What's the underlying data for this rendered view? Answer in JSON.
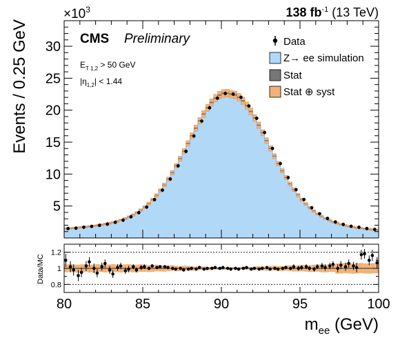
{
  "header": {
    "exponent_base": "×10",
    "exponent_power": "3",
    "lumi_value": "138 fb",
    "lumi_power": "-1",
    "lumi_energy": " (13 TeV)"
  },
  "labels": {
    "experiment": "CMS",
    "status": "Preliminary",
    "cut_et_main": "E",
    "cut_et_sub": "T 1,2",
    "cut_et_rest": " > 50 GeV",
    "cut_eta_main": "|η",
    "cut_eta_sub": "1,2",
    "cut_eta_rest": "| < 1.44"
  },
  "colors": {
    "simulation_fill": "#b2d8f8",
    "simulation_line": "#6fa8dc",
    "stat_band": "#777777",
    "syst_band": "#f0b27a",
    "syst_band_edge": "#c8793a",
    "data": "#000000"
  },
  "chart_data": [
    {
      "type": "bar",
      "panel": "main",
      "xlabel": "m",
      "xlabel_sub": "ee",
      "xlabel_unit": " (GeV)",
      "ylabel": "Events / 0.25 GeV",
      "y_scale_note": "×10^3",
      "xlim": [
        80,
        100
      ],
      "ylim": [
        0,
        34
      ],
      "x_ticks": [
        80,
        85,
        90,
        95,
        100
      ],
      "y_ticks": [
        5,
        10,
        15,
        20,
        25,
        30
      ],
      "legend_position": "top-right",
      "legend": [
        "Data",
        "Z→ ee simulation",
        "Stat",
        "Stat ⊕ syst"
      ],
      "peak": 90.6,
      "peak_value": 22.6,
      "resolution_core": 2.55,
      "background_level": 0.25,
      "ratio_ylim": [
        0.7,
        1.3
      ],
      "ratio_ylabel": "Data/MC",
      "ratio_y_ticks": [
        0.8,
        1,
        1.2
      ],
      "ratio_ref_lines": [
        0.8,
        1.0,
        1.2
      ],
      "ratio_points": [
        [
          80.1,
          1.1,
          0.08
        ],
        [
          80.4,
          1.02,
          0.07
        ],
        [
          80.6,
          0.98,
          0.07
        ],
        [
          80.9,
          0.91,
          0.07
        ],
        [
          81.1,
          0.95,
          0.06
        ],
        [
          81.4,
          1.03,
          0.06
        ],
        [
          81.6,
          1.08,
          0.06
        ],
        [
          81.9,
          1.0,
          0.06
        ],
        [
          82.1,
          0.94,
          0.05
        ],
        [
          82.4,
          1.02,
          0.05
        ],
        [
          82.6,
          1.06,
          0.05
        ],
        [
          82.9,
          0.98,
          0.05
        ],
        [
          83.1,
          0.93,
          0.05
        ],
        [
          83.4,
          1.01,
          0.04
        ],
        [
          83.6,
          1.03,
          0.04
        ],
        [
          83.9,
          0.97,
          0.04
        ],
        [
          84.1,
          0.99,
          0.04
        ],
        [
          84.4,
          1.02,
          0.03
        ],
        [
          84.6,
          0.98,
          0.03
        ],
        [
          84.9,
          1.01,
          0.03
        ],
        [
          85.1,
          1.02,
          0.03
        ],
        [
          85.4,
          1.0,
          0.02
        ],
        [
          85.6,
          1.03,
          0.02
        ],
        [
          85.9,
          1.01,
          0.02
        ],
        [
          86.1,
          1.02,
          0.02
        ],
        [
          86.4,
          1.02,
          0.02
        ],
        [
          86.6,
          1.01,
          0.02
        ],
        [
          86.9,
          1.0,
          0.02
        ],
        [
          87.1,
          0.99,
          0.02
        ],
        [
          87.4,
          1.0,
          0.02
        ],
        [
          87.6,
          0.98,
          0.02
        ],
        [
          87.9,
          0.99,
          0.02
        ],
        [
          88.1,
          1.0,
          0.02
        ],
        [
          88.4,
          0.99,
          0.02
        ],
        [
          88.6,
          1.01,
          0.02
        ],
        [
          88.9,
          0.99,
          0.02
        ],
        [
          89.1,
          1.0,
          0.02
        ],
        [
          89.4,
          1.0,
          0.02
        ],
        [
          89.6,
          1.01,
          0.02
        ],
        [
          89.9,
          1.0,
          0.02
        ],
        [
          90.1,
          1.01,
          0.02
        ],
        [
          90.4,
          1.0,
          0.02
        ],
        [
          90.6,
          0.99,
          0.02
        ],
        [
          90.9,
          1.0,
          0.02
        ],
        [
          91.1,
          0.99,
          0.02
        ],
        [
          91.4,
          1.0,
          0.02
        ],
        [
          91.6,
          1.01,
          0.02
        ],
        [
          91.9,
          0.99,
          0.02
        ],
        [
          92.1,
          1.0,
          0.02
        ],
        [
          92.4,
          0.99,
          0.02
        ],
        [
          92.6,
          1.0,
          0.02
        ],
        [
          92.9,
          1.01,
          0.02
        ],
        [
          93.1,
          0.99,
          0.02
        ],
        [
          93.4,
          1.0,
          0.02
        ],
        [
          93.6,
          0.99,
          0.02
        ],
        [
          93.9,
          1.0,
          0.02
        ],
        [
          94.1,
          1.01,
          0.02
        ],
        [
          94.4,
          1.0,
          0.02
        ],
        [
          94.6,
          1.02,
          0.03
        ],
        [
          94.9,
          1.0,
          0.03
        ],
        [
          95.1,
          1.01,
          0.03
        ],
        [
          95.4,
          1.02,
          0.03
        ],
        [
          95.6,
          1.0,
          0.03
        ],
        [
          95.9,
          0.99,
          0.03
        ],
        [
          96.1,
          1.02,
          0.03
        ],
        [
          96.4,
          1.03,
          0.04
        ],
        [
          96.6,
          1.01,
          0.04
        ],
        [
          96.9,
          1.03,
          0.04
        ],
        [
          97.1,
          1.05,
          0.04
        ],
        [
          97.4,
          1.0,
          0.05
        ],
        [
          97.6,
          1.04,
          0.05
        ],
        [
          97.9,
          1.02,
          0.05
        ],
        [
          98.1,
          1.06,
          0.05
        ],
        [
          98.4,
          1.03,
          0.05
        ],
        [
          98.6,
          1.01,
          0.06
        ],
        [
          98.9,
          1.17,
          0.06
        ],
        [
          99.1,
          1.18,
          0.06
        ],
        [
          99.4,
          1.1,
          0.06
        ],
        [
          99.6,
          1.16,
          0.07
        ],
        [
          99.9,
          1.07,
          0.07
        ]
      ]
    }
  ]
}
